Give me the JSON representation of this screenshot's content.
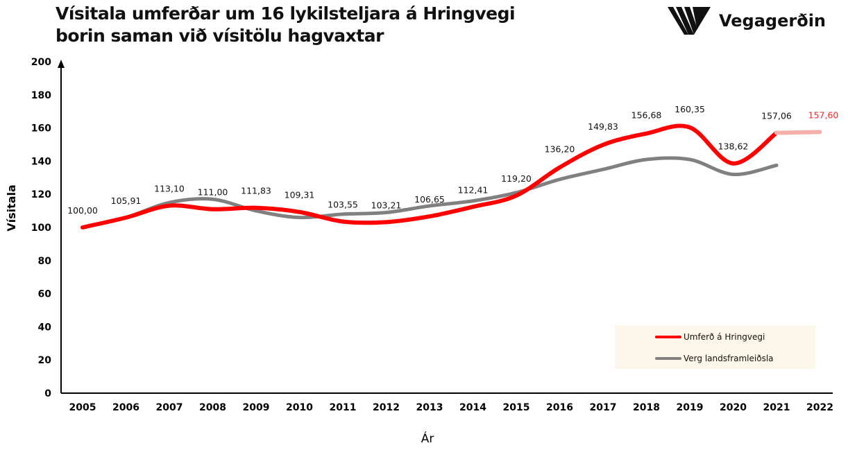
{
  "header": {
    "title_line1": "Vísitala umferðar um 16 lykilsteljara á Hringvegi",
    "title_line2": "borin saman við vísitölu hagvaxtar"
  },
  "logo": {
    "text": "Vegagerðin",
    "icon": "striped-v-logo-icon"
  },
  "chart_data": {
    "type": "line",
    "xlabel": "Ár",
    "ylabel": "Vísitala",
    "ylim": [
      0,
      200
    ],
    "yticks": [
      0,
      20,
      40,
      60,
      80,
      100,
      120,
      140,
      160,
      180,
      200
    ],
    "categories": [
      "2005",
      "2006",
      "2007",
      "2008",
      "2009",
      "2010",
      "2011",
      "2012",
      "2013",
      "2014",
      "2015",
      "2016",
      "2017",
      "2018",
      "2019",
      "2020",
      "2021",
      "2022"
    ],
    "grid": false,
    "legend_position": "bottom-right",
    "series": [
      {
        "name": "Umferð á Hringvegi",
        "color": "#ff0000",
        "values": [
          100.0,
          105.91,
          113.1,
          111.0,
          111.83,
          109.31,
          103.55,
          103.21,
          106.65,
          112.41,
          119.2,
          136.2,
          149.83,
          156.68,
          160.35,
          138.62,
          157.06,
          157.6
        ],
        "labels": [
          "100,00",
          "105,91",
          "113,10",
          "111,00",
          "111,83",
          "109,31",
          "103,55",
          "103,21",
          "106,65",
          "112,41",
          "119,20",
          "136,20",
          "149,83",
          "156,68",
          "160,35",
          "138,62",
          "157,06",
          "157,60"
        ],
        "forecast_from": "2021",
        "forecast_color": "#f4b0a8"
      },
      {
        "name": "Verg landsframleiðsla",
        "color": "#808080",
        "values": [
          100,
          106,
          115,
          117,
          110,
          106,
          108,
          109,
          113,
          116,
          121,
          129,
          135,
          141,
          141,
          132,
          137.5,
          null
        ]
      }
    ]
  }
}
